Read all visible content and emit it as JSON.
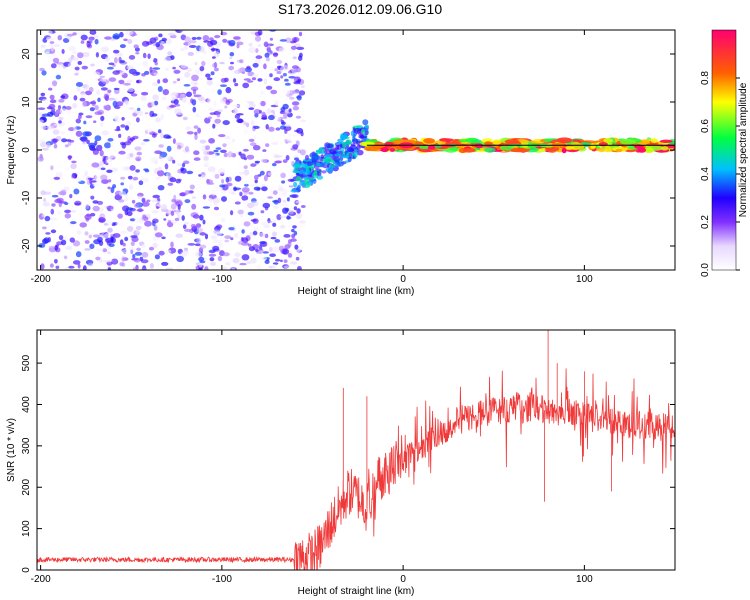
{
  "chart_data": [
    {
      "type": "heatmap",
      "title": "S173.2026.012.09.06.G10",
      "xlabel": "Height of straight line (km)",
      "ylabel": "Frequency (Hz)",
      "xlim": [
        -202,
        150
      ],
      "ylim": [
        -25,
        25
      ],
      "xticks": [
        -200,
        -100,
        0,
        100
      ],
      "yticks": [
        -20,
        -10,
        0,
        10,
        20
      ],
      "colorbar": {
        "label": "Normalized spectral amplitude",
        "range": [
          0,
          1
        ],
        "ticks": [
          "0.0",
          "0.2",
          "0.4",
          "0.6",
          "0.8"
        ],
        "colors": [
          "#ffffff",
          "#b070ff",
          "#3a00ff",
          "#00c0ff",
          "#00ff60",
          "#ffff00",
          "#ff6000",
          "#ff0060"
        ]
      },
      "regions": [
        {
          "name": "noise",
          "x": [
            -200,
            -55
          ],
          "y": [
            -25,
            25
          ],
          "amplitude": [
            0.0,
            0.35
          ]
        },
        {
          "name": "transition",
          "x": [
            -60,
            -20
          ],
          "y": [
            -8,
            6
          ],
          "amplitude": [
            0.2,
            0.5
          ]
        },
        {
          "name": "carrier",
          "x": [
            -20,
            150
          ],
          "y": [
            -1,
            3
          ],
          "amplitude": [
            0.5,
            1.0
          ]
        }
      ]
    },
    {
      "type": "line",
      "xlabel": "Height of straight line (km)",
      "ylabel": "SNR (10 * v/v)",
      "xlim": [
        -202,
        150
      ],
      "ylim": [
        0,
        580
      ],
      "xticks": [
        -200,
        -100,
        0,
        100
      ],
      "yticks": [
        0,
        100,
        200,
        300,
        400,
        500
      ],
      "color": "#f03a3a",
      "series": [
        {
          "name": "SNR",
          "x": [
            -200,
            -150,
            -100,
            -60,
            -50,
            -45,
            -40,
            -35,
            -30,
            -25,
            -20,
            -15,
            -10,
            -5,
            0,
            10,
            20,
            30,
            40,
            50,
            60,
            70,
            80,
            90,
            100,
            110,
            120,
            130,
            140,
            150
          ],
          "mean": [
            25,
            25,
            25,
            25,
            35,
            60,
            110,
            150,
            190,
            180,
            150,
            210,
            240,
            255,
            270,
            300,
            330,
            360,
            375,
            385,
            390,
            390,
            385,
            380,
            375,
            365,
            360,
            350,
            345,
            350
          ],
          "spikes": [
            {
              "x": -33,
              "y": 440
            },
            {
              "x": -20,
              "y": 420
            },
            {
              "x": 80,
              "y": 580
            },
            {
              "x": 78,
              "y": 165
            },
            {
              "x": 85,
              "y": 500
            },
            {
              "x": 115,
              "y": 190
            },
            {
              "x": 100,
              "y": 480
            }
          ]
        }
      ]
    }
  ]
}
